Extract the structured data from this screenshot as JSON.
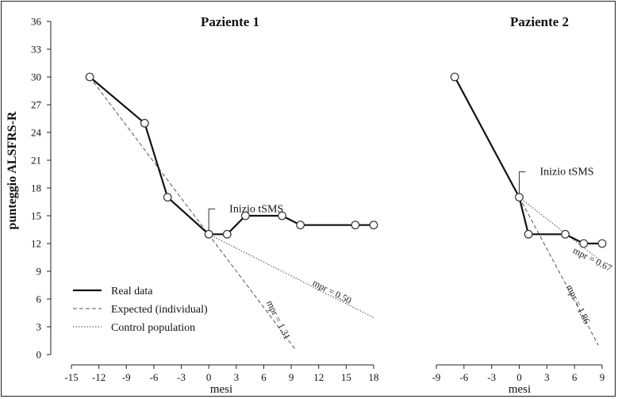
{
  "chart_data": {
    "type": "line",
    "ylabel": "punteggio ALSFRS-R",
    "yticks": [
      0,
      3,
      6,
      9,
      12,
      15,
      18,
      21,
      24,
      27,
      30,
      33,
      36
    ],
    "ylim": [
      0,
      36
    ],
    "legend": {
      "position": "bottom-left",
      "entries": [
        {
          "label": "Real data",
          "style": "solid"
        },
        {
          "label": "Expected (individual)",
          "style": "dashed"
        },
        {
          "label": "Control population",
          "style": "dotted"
        }
      ]
    },
    "panels": [
      {
        "title": "Paziente 1",
        "xlabel": "mesi",
        "xlim": [
          -15,
          18
        ],
        "xticks": [
          -15,
          -12,
          -9,
          -6,
          -3,
          0,
          3,
          6,
          9,
          12,
          15,
          18
        ],
        "real_data": [
          {
            "x": -13,
            "y": 30
          },
          {
            "x": -7,
            "y": 25
          },
          {
            "x": -4.5,
            "y": 17
          },
          {
            "x": 0,
            "y": 13
          },
          {
            "x": 2,
            "y": 13
          },
          {
            "x": 4,
            "y": 15
          },
          {
            "x": 8,
            "y": 15
          },
          {
            "x": 10,
            "y": 14
          },
          {
            "x": 16,
            "y": 14
          },
          {
            "x": 18,
            "y": 14
          }
        ],
        "expected_individual": [
          {
            "x": -13,
            "y": 30
          },
          {
            "x": 9.5,
            "y": 0.5
          }
        ],
        "control_population": [
          {
            "x": 0,
            "y": 13
          },
          {
            "x": 18,
            "y": 4
          }
        ],
        "annotation": {
          "text": "Inizio tSMS",
          "x": 0
        },
        "mpr_labels": [
          {
            "text": "mpr = 1.31",
            "x": 7.3,
            "y": 3.6,
            "angle": 64
          },
          {
            "text": "mpr = 0.50",
            "x": 13.3,
            "y": 6.5,
            "angle": 27
          }
        ]
      },
      {
        "title": "Paziente 2",
        "xlabel": "mesi",
        "xlim": [
          -9,
          9
        ],
        "xticks": [
          -9,
          -6,
          -3,
          0,
          3,
          6,
          9
        ],
        "real_data": [
          {
            "x": -7,
            "y": 30
          },
          {
            "x": 0,
            "y": 17
          },
          {
            "x": 1,
            "y": 13
          },
          {
            "x": 5,
            "y": 13
          },
          {
            "x": 7,
            "y": 12
          },
          {
            "x": 9,
            "y": 12
          }
        ],
        "expected_individual": [
          {
            "x": 0,
            "y": 17
          },
          {
            "x": 8.6,
            "y": 1
          }
        ],
        "control_population": [
          {
            "x": 0,
            "y": 17
          },
          {
            "x": 9,
            "y": 10
          }
        ],
        "annotation": {
          "text": "Inizio tSMS",
          "x": 0
        },
        "mpr_labels": [
          {
            "text": "mpr = 1.86",
            "x": 6.1,
            "y": 5.3,
            "angle": 64
          },
          {
            "text": "mpr = 0.67",
            "x": 7.8,
            "y": 10.0,
            "angle": 27
          }
        ]
      }
    ]
  }
}
